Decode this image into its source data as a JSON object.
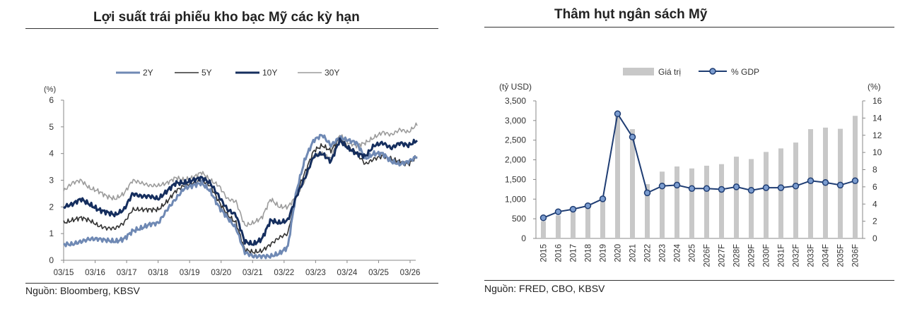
{
  "left": {
    "title": "Lợi suất trái phiếu kho bạc Mỹ các kỳ hạn",
    "source": "Nguồn: Bloomberg, KBSV"
  },
  "right": {
    "title": "Thâm hụt ngân sách Mỹ",
    "source": "Nguồn: FRED, CBO, KBSV"
  },
  "chart_data": [
    {
      "type": "line",
      "title": "Lợi suất trái phiếu kho bạc Mỹ các kỳ hạn",
      "ylabel": "(%)",
      "ylim": [
        0,
        6
      ],
      "y_ticks": [
        0,
        1,
        2,
        3,
        4,
        5,
        6
      ],
      "x_ticks": [
        "03/15",
        "03/16",
        "03/17",
        "03/18",
        "03/19",
        "03/20",
        "03/21",
        "03/22",
        "03/23",
        "03/24",
        "03/25",
        "03/26"
      ],
      "x_range": [
        "03/15",
        "03/26"
      ],
      "grid": false,
      "legend_position": "top",
      "series": [
        {
          "name": "2Y",
          "color": "#6f89b4",
          "values": [
            0.6,
            0.6,
            0.7,
            0.8,
            0.8,
            0.75,
            0.7,
            0.8,
            1.1,
            1.2,
            1.35,
            1.4,
            1.9,
            2.3,
            2.7,
            2.8,
            2.9,
            2.6,
            2.0,
            1.6,
            1.2,
            0.3,
            0.15,
            0.15,
            0.15,
            0.25,
            0.5,
            2.6,
            3.8,
            4.5,
            4.7,
            4.3,
            4.6,
            4.5,
            4.4,
            3.8,
            4.0,
            4.0,
            3.7,
            3.6,
            3.7,
            3.9
          ]
        },
        {
          "name": "5Y",
          "color": "#333333",
          "values": [
            1.4,
            1.5,
            1.6,
            1.5,
            1.3,
            1.2,
            1.2,
            1.4,
            1.9,
            1.9,
            1.9,
            1.9,
            2.2,
            2.6,
            2.8,
            2.9,
            3.0,
            2.8,
            2.2,
            1.7,
            1.4,
            0.4,
            0.3,
            0.35,
            0.6,
            0.85,
            1.0,
            2.5,
            3.3,
            4.1,
            4.3,
            4.1,
            4.6,
            4.2,
            4.0,
            3.6,
            3.8,
            3.9,
            3.8,
            3.7,
            3.6,
            3.9
          ]
        },
        {
          "name": "10Y",
          "color": "#152e5e",
          "values": [
            2.0,
            2.1,
            2.3,
            2.1,
            1.9,
            1.8,
            1.7,
            1.9,
            2.5,
            2.4,
            2.4,
            2.3,
            2.6,
            2.9,
            2.9,
            3.0,
            3.1,
            2.9,
            2.4,
            1.9,
            1.7,
            0.7,
            0.6,
            0.8,
            1.5,
            1.4,
            1.5,
            2.4,
            3.1,
            3.9,
            4.0,
            3.7,
            4.5,
            4.2,
            4.0,
            3.9,
            4.3,
            4.4,
            4.2,
            4.4,
            4.3,
            4.5
          ]
        },
        {
          "name": "30Y",
          "color": "#9c9c9c",
          "values": [
            2.6,
            2.9,
            3.0,
            2.7,
            2.6,
            2.4,
            2.3,
            2.5,
            3.0,
            2.9,
            2.8,
            2.8,
            2.9,
            3.1,
            3.0,
            3.1,
            3.3,
            3.0,
            2.8,
            2.3,
            2.2,
            1.3,
            1.4,
            1.6,
            2.3,
            2.0,
            2.0,
            2.4,
            3.0,
            3.9,
            4.0,
            3.8,
            4.7,
            4.4,
            4.3,
            4.4,
            4.6,
            4.8,
            4.7,
            4.9,
            4.8,
            5.1
          ]
        }
      ]
    },
    {
      "type": "bar",
      "title": "Thâm hụt ngân sách Mỹ",
      "ylabel": "(tỷ USD)",
      "y2label": "(%)",
      "ylim": [
        0,
        3500
      ],
      "y2lim": [
        0,
        16
      ],
      "y_ticks": [
        "0",
        "500",
        "1,000",
        "1,500",
        "2,000",
        "2,500",
        "3,000",
        "3,500"
      ],
      "y2_ticks": [
        "0",
        "2",
        "4",
        "6",
        "8",
        "10",
        "12",
        "14",
        "16"
      ],
      "grid": false,
      "legend_position": "top",
      "categories": [
        "2015",
        "2016",
        "2017",
        "2018",
        "2019",
        "2020",
        "2021",
        "2022",
        "2023",
        "2024",
        "2025",
        "2026F",
        "2027F",
        "2028F",
        "2029F",
        "2030F",
        "2031F",
        "2032F",
        "2033F",
        "2034F",
        "2035F",
        "2036F"
      ],
      "series": [
        {
          "name": "Giá trị",
          "type": "bar",
          "axis": "left",
          "color": "#c8c8c8",
          "values": [
            440,
            585,
            665,
            780,
            985,
            3130,
            2780,
            1380,
            1700,
            1830,
            1780,
            1850,
            1890,
            2080,
            2020,
            2200,
            2290,
            2440,
            2780,
            2820,
            2790,
            3120
          ]
        },
        {
          "name": "% GDP",
          "type": "line",
          "axis": "right",
          "color": "#1f3d73",
          "marker_fill": "#7b9ccf",
          "values": [
            2.4,
            3.1,
            3.4,
            3.8,
            4.6,
            14.5,
            11.8,
            5.3,
            6.1,
            6.2,
            5.8,
            5.8,
            5.7,
            6.0,
            5.6,
            5.9,
            5.9,
            6.1,
            6.7,
            6.5,
            6.2,
            6.7
          ]
        }
      ]
    }
  ]
}
